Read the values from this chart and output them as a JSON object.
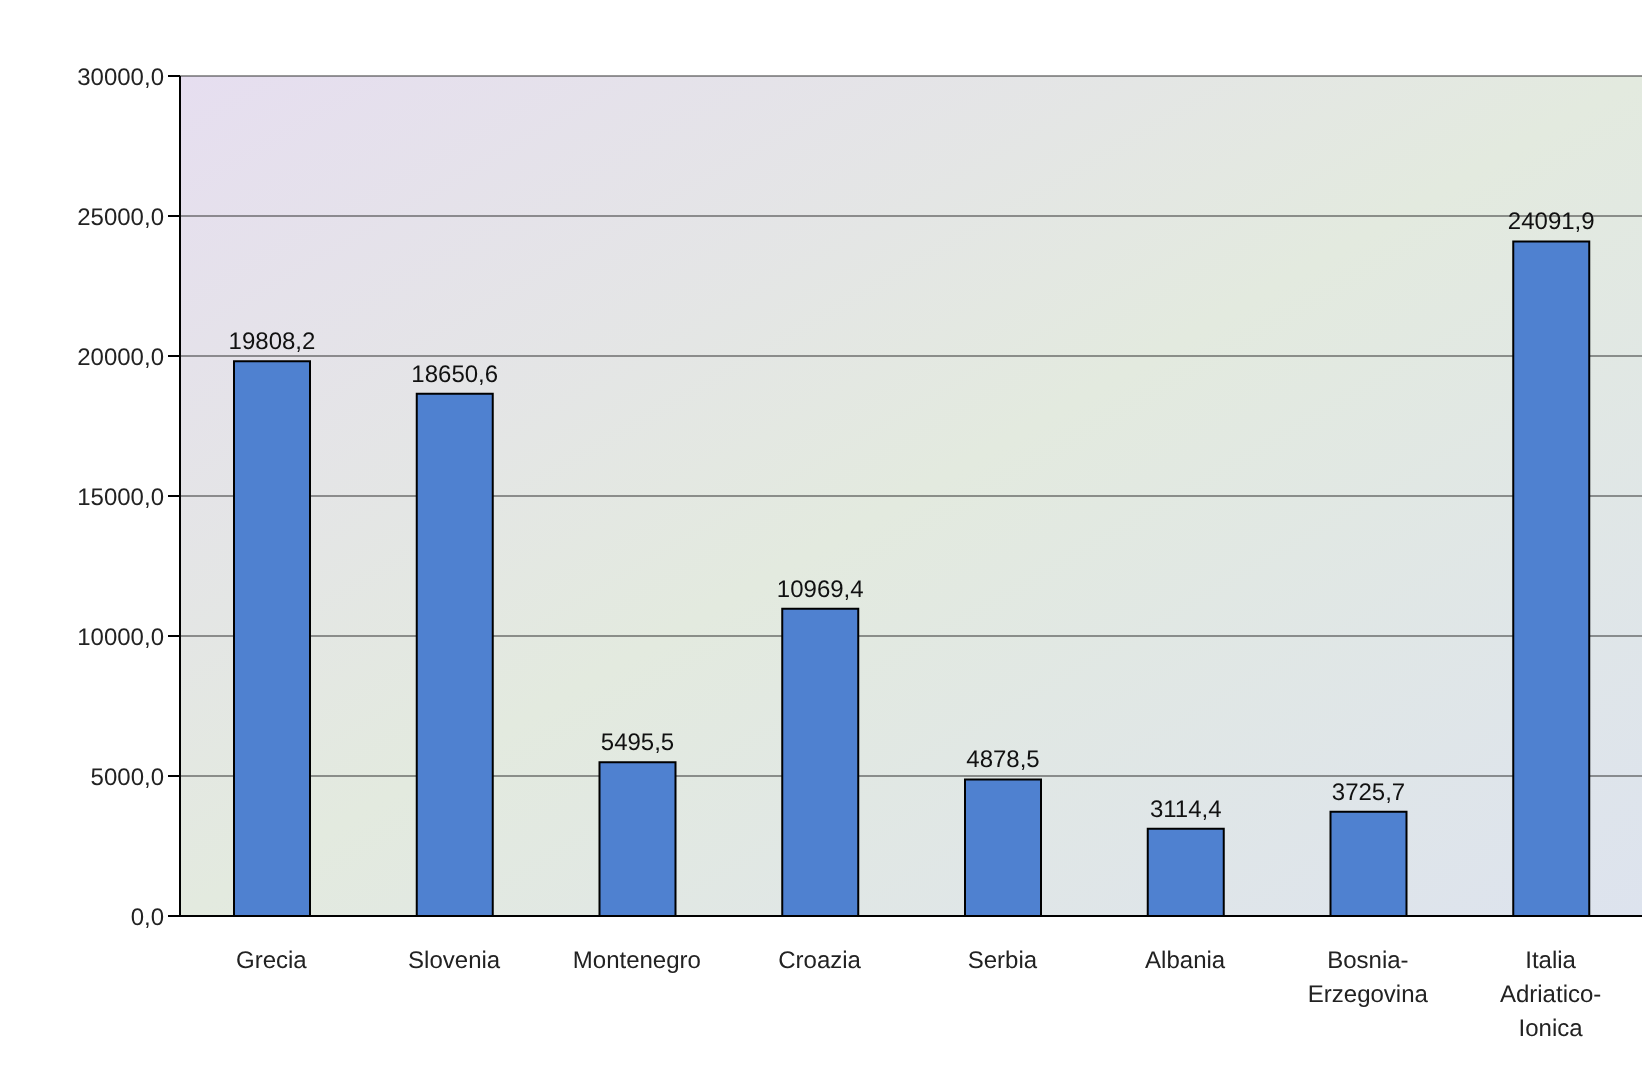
{
  "chart_data": {
    "type": "bar",
    "categories": [
      "Grecia",
      "Slovenia",
      "Montenegro",
      "Croazia",
      "Serbia",
      "Albania",
      "Bosnia-Erzegovina",
      "Italia Adriatico-Ionica"
    ],
    "values": [
      19808.2,
      18650.6,
      5495.5,
      10969.4,
      4878.5,
      3114.4,
      3725.7,
      24091.9
    ],
    "value_labels": [
      "19808,2",
      "18650,6",
      "5495,5",
      "10969,4",
      "4878,5",
      "3114,4",
      "3725,7",
      "24091,9"
    ],
    "color": "#4f81d0",
    "ylim": [
      0,
      30000
    ],
    "yticks": [
      {
        "value": 0,
        "label": "0,0"
      },
      {
        "value": 5000,
        "label": "5000,0"
      },
      {
        "value": 10000,
        "label": "10000,0"
      },
      {
        "value": 15000,
        "label": "15000,0"
      },
      {
        "value": 20000,
        "label": "20000,0"
      },
      {
        "value": 25000,
        "label": "25000,0"
      },
      {
        "value": 30000,
        "label": "30000,0"
      }
    ],
    "grid": "y"
  }
}
